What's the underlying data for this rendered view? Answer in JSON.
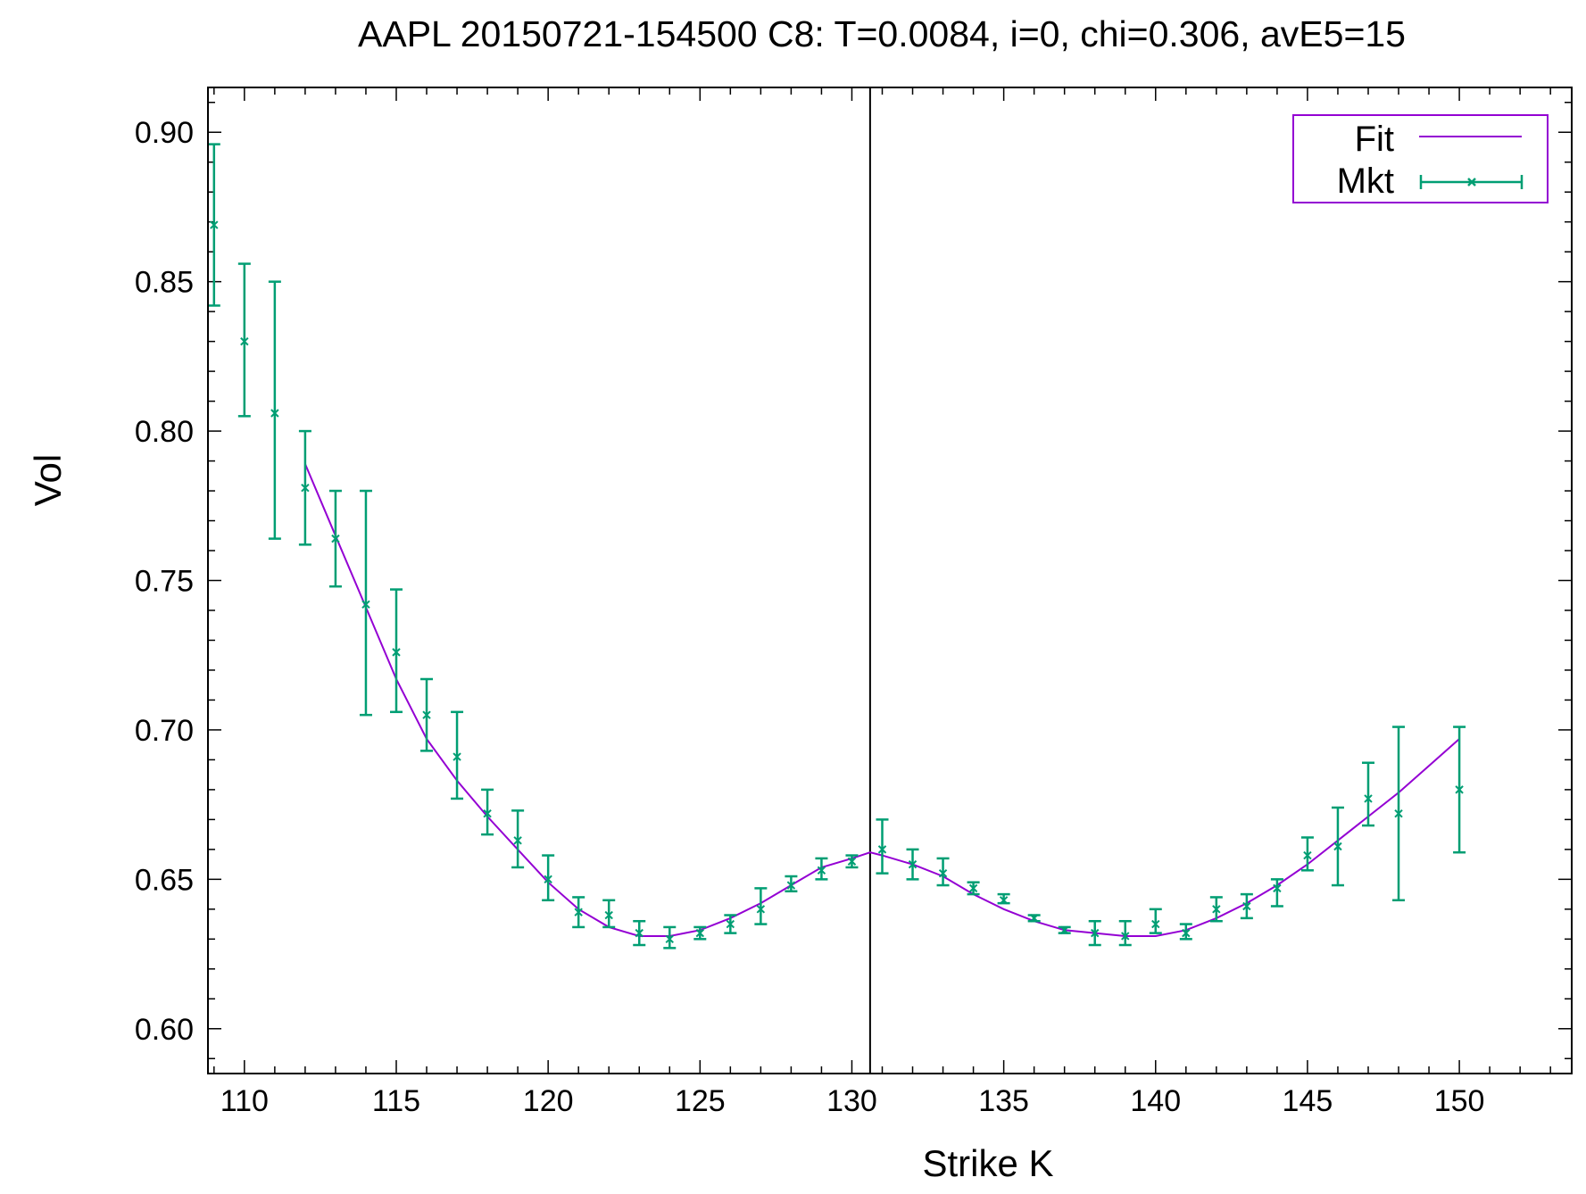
{
  "chart_data": {
    "type": "scatter",
    "title": "AAPL 20150721-154500  C8:  T=0.0084, i=0, chi=0.306, avE5=15",
    "xlabel": "Strike K",
    "ylabel": "Vol",
    "xlim": [
      108.8,
      153.7
    ],
    "ylim": [
      0.585,
      0.915
    ],
    "x_ticks": [
      110,
      115,
      120,
      125,
      130,
      135,
      140,
      145,
      150
    ],
    "x_tick_labels": [
      "110",
      "115",
      "120",
      "125",
      "130",
      "135",
      "140",
      "145",
      "150"
    ],
    "x_minor_step": 1,
    "y_ticks": [
      0.6,
      0.65,
      0.7,
      0.75,
      0.8,
      0.85,
      0.9
    ],
    "y_tick_labels": [
      "0.60",
      "0.65",
      "0.70",
      "0.75",
      "0.80",
      "0.85",
      "0.90"
    ],
    "y_minor_step": 0.01,
    "grid": false,
    "legend_position": "top-right",
    "reference_line_x": 130.6,
    "series": [
      {
        "name": "Fit",
        "kind": "line",
        "color": "#9400D3",
        "x": [
          112,
          113,
          114,
          115,
          116,
          117,
          118,
          119,
          120,
          121,
          122,
          123,
          124,
          125,
          126,
          127,
          128,
          129,
          130,
          130.6,
          131,
          132,
          133,
          134,
          135,
          136,
          137,
          138,
          139,
          140,
          141,
          142,
          143,
          144,
          145,
          146,
          147,
          148,
          149,
          150
        ],
        "y": [
          0.789,
          0.765,
          0.741,
          0.717,
          0.697,
          0.683,
          0.671,
          0.66,
          0.649,
          0.64,
          0.634,
          0.631,
          0.631,
          0.633,
          0.637,
          0.642,
          0.648,
          0.654,
          0.657,
          0.659,
          0.658,
          0.655,
          0.651,
          0.645,
          0.64,
          0.636,
          0.633,
          0.632,
          0.631,
          0.631,
          0.633,
          0.637,
          0.642,
          0.648,
          0.655,
          0.663,
          0.671,
          0.679,
          0.688,
          0.697
        ]
      },
      {
        "name": "Mkt",
        "kind": "errorbars",
        "color": "#009E73",
        "x": [
          109,
          110,
          111,
          112,
          113,
          114,
          115,
          116,
          117,
          118,
          119,
          120,
          121,
          122,
          123,
          124,
          125,
          126,
          127,
          128,
          129,
          130,
          131,
          132,
          133,
          134,
          135,
          136,
          137,
          138,
          139,
          140,
          141,
          142,
          143,
          144,
          145,
          146,
          147,
          148,
          150
        ],
        "y": [
          0.869,
          0.83,
          0.806,
          0.781,
          0.764,
          0.742,
          0.726,
          0.705,
          0.691,
          0.672,
          0.663,
          0.65,
          0.639,
          0.638,
          0.632,
          0.63,
          0.632,
          0.635,
          0.64,
          0.648,
          0.653,
          0.656,
          0.66,
          0.655,
          0.652,
          0.647,
          0.643,
          0.637,
          0.633,
          0.632,
          0.631,
          0.635,
          0.632,
          0.64,
          0.641,
          0.647,
          0.658,
          0.661,
          0.677,
          0.672,
          0.68
        ],
        "ylow": [
          0.842,
          0.805,
          0.764,
          0.762,
          0.748,
          0.705,
          0.706,
          0.693,
          0.677,
          0.665,
          0.654,
          0.643,
          0.634,
          0.634,
          0.628,
          0.627,
          0.63,
          0.632,
          0.635,
          0.646,
          0.65,
          0.654,
          0.652,
          0.65,
          0.648,
          0.645,
          0.642,
          0.636,
          0.632,
          0.628,
          0.628,
          0.632,
          0.63,
          0.636,
          0.637,
          0.641,
          0.653,
          0.648,
          0.668,
          0.643,
          0.659
        ],
        "yhigh": [
          0.896,
          0.856,
          0.85,
          0.8,
          0.78,
          0.78,
          0.747,
          0.717,
          0.706,
          0.68,
          0.673,
          0.658,
          0.644,
          0.643,
          0.636,
          0.634,
          0.634,
          0.638,
          0.647,
          0.651,
          0.657,
          0.658,
          0.67,
          0.66,
          0.657,
          0.649,
          0.645,
          0.638,
          0.634,
          0.636,
          0.636,
          0.64,
          0.635,
          0.644,
          0.645,
          0.65,
          0.664,
          0.674,
          0.689,
          0.701,
          0.701
        ]
      }
    ]
  }
}
